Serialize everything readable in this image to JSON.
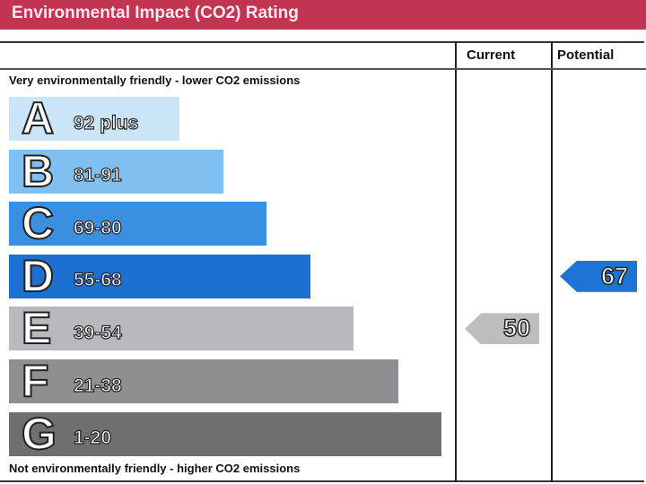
{
  "title": "Environmental Impact (CO2) Rating",
  "columns": {
    "current": "Current",
    "potential": "Potential"
  },
  "top_note": "Very environmentally friendly - lower CO2 emissions",
  "bottom_note": "Not environmentally friendly - higher CO2 emissions",
  "chart_data": {
    "type": "bar",
    "title": "Environmental Impact (CO2) Rating",
    "categories": [
      "A",
      "B",
      "C",
      "D",
      "E",
      "F",
      "G"
    ],
    "ranges": [
      "92 plus",
      "81-91",
      "69-80",
      "55-68",
      "39-54",
      "21-38",
      "1-20"
    ],
    "colors": [
      "#c9e5f6",
      "#80bff0",
      "#3b8fe0",
      "#1e6fd2",
      "#b9b9bd",
      "#8f8f91",
      "#6f6f71"
    ],
    "current": {
      "value": 50,
      "band": "E",
      "color": "#bdbdbf"
    },
    "potential": {
      "value": 67,
      "band": "D",
      "color": "#1e74d6"
    }
  }
}
